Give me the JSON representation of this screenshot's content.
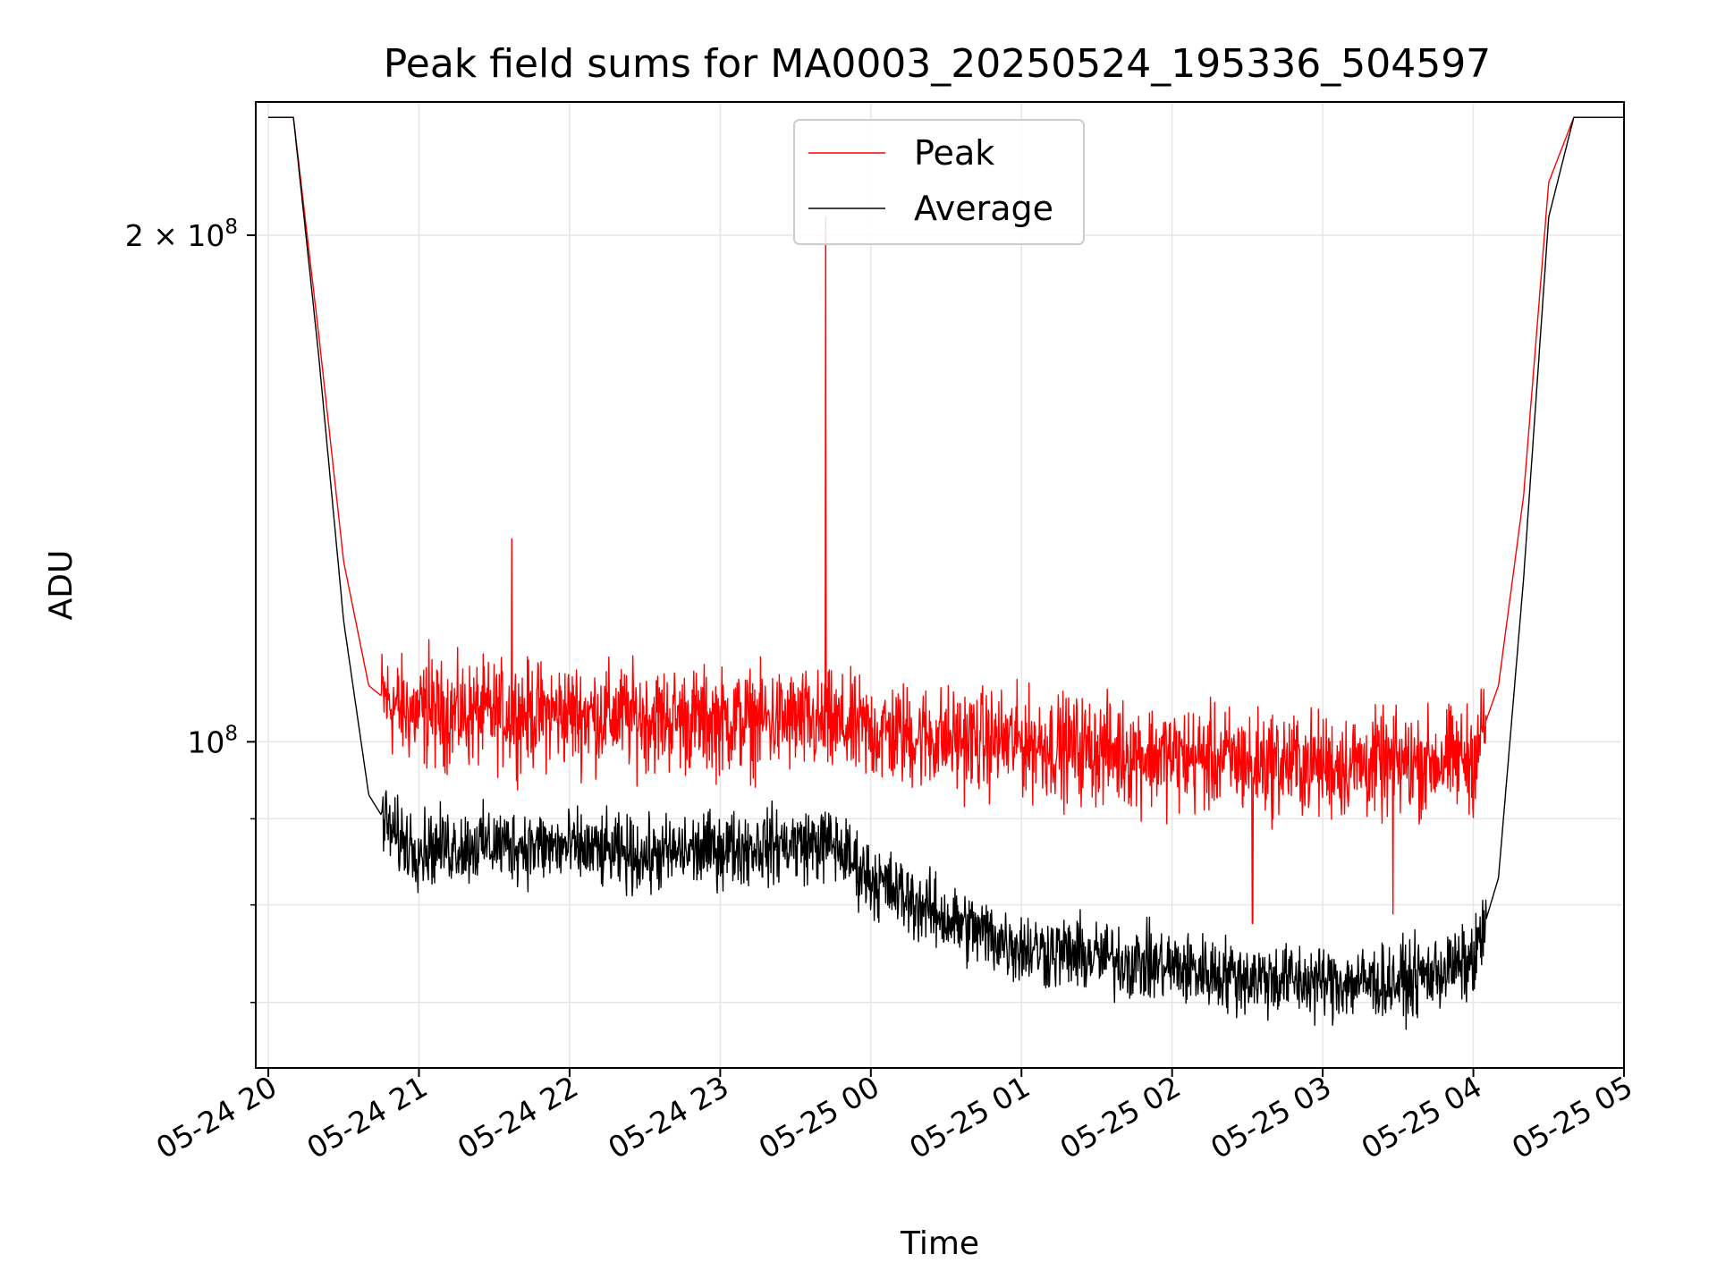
{
  "chart_data": {
    "type": "line",
    "title": "Peak field sums for MA0003_20250524_195336_504597",
    "xlabel": "Time",
    "ylabel": "ADU",
    "yscale": "log",
    "grid": true,
    "legend_position": "upper-center",
    "xlim": [
      "2025-05-24 19:55",
      "2025-05-25 05:00"
    ],
    "ylim": [
      64000000,
      240000000
    ],
    "x_ticks": [
      "05-24 20",
      "05-24 21",
      "05-24 22",
      "05-24 23",
      "05-25 00",
      "05-25 01",
      "05-25 02",
      "05-25 03",
      "05-25 04",
      "05-25 05"
    ],
    "y_ticks_major": [
      {
        "value": 100000000,
        "base": "10",
        "exp": "8"
      },
      {
        "value": 200000000,
        "base": "2 × 10",
        "exp": "8"
      }
    ],
    "y_ticks_minor": [
      70000000,
      80000000,
      90000000
    ],
    "series": [
      {
        "name": "Peak",
        "color": "#ff0000",
        "x": [
          "2025-05-24 20:00",
          "2025-05-24 20:10",
          "2025-05-24 20:20",
          "2025-05-24 20:30",
          "2025-05-24 20:40",
          "2025-05-24 20:50",
          "2025-05-24 21:00",
          "2025-05-24 21:30",
          "2025-05-24 22:00",
          "2025-05-24 22:30",
          "2025-05-24 23:00",
          "2025-05-24 23:30",
          "2025-05-25 00:00",
          "2025-05-25 00:30",
          "2025-05-25 01:00",
          "2025-05-25 01:30",
          "2025-05-25 02:00",
          "2025-05-25 02:30",
          "2025-05-25 03:00",
          "2025-05-25 03:30",
          "2025-05-25 04:00",
          "2025-05-25 04:10",
          "2025-05-25 04:20",
          "2025-05-25 04:30",
          "2025-05-25 04:40",
          "2025-05-25 05:00"
        ],
        "y": [
          235000000,
          235000000,
          175000000,
          128000000,
          108000000,
          105000000,
          104000000,
          104000000,
          104000000,
          103500000,
          103000000,
          103000000,
          101500000,
          100500000,
          100000000,
          99000000,
          98000000,
          97500000,
          97000000,
          97000000,
          98000000,
          108000000,
          140000000,
          215000000,
          235000000,
          235000000
        ],
        "spikes": [
          {
            "x": "2025-05-24 21:04",
            "y": 115000000
          },
          {
            "x": "2025-05-24 21:37",
            "y": 132000000
          },
          {
            "x": "2025-05-24 23:42",
            "y": 205000000
          },
          {
            "x": "2025-05-25 02:32",
            "y": 78000000
          },
          {
            "x": "2025-05-25 03:28",
            "y": 79000000
          }
        ],
        "noise_amplitude": 0.035
      },
      {
        "name": "Average",
        "color": "#000000",
        "x": [
          "2025-05-24 20:00",
          "2025-05-24 20:10",
          "2025-05-24 20:20",
          "2025-05-24 20:30",
          "2025-05-24 20:40",
          "2025-05-24 20:50",
          "2025-05-24 21:00",
          "2025-05-24 21:30",
          "2025-05-24 22:00",
          "2025-05-24 22:30",
          "2025-05-24 23:00",
          "2025-05-24 23:30",
          "2025-05-24 23:45",
          "2025-05-25 00:00",
          "2025-05-25 00:30",
          "2025-05-25 01:00",
          "2025-05-25 01:30",
          "2025-05-25 02:00",
          "2025-05-25 02:30",
          "2025-05-25 03:00",
          "2025-05-25 03:30",
          "2025-05-25 04:00",
          "2025-05-25 04:10",
          "2025-05-25 04:20",
          "2025-05-25 04:30",
          "2025-05-25 04:40",
          "2025-05-25 05:00"
        ],
        "y": [
          235000000,
          235000000,
          170000000,
          118000000,
          93000000,
          88000000,
          86500000,
          87000000,
          86500000,
          85500000,
          86500000,
          87000000,
          87000000,
          83000000,
          78500000,
          75500000,
          74500000,
          73500000,
          72500000,
          72000000,
          72000000,
          74000000,
          83000000,
          125000000,
          205000000,
          235000000,
          235000000
        ],
        "noise_amplitude": 0.025
      }
    ]
  }
}
